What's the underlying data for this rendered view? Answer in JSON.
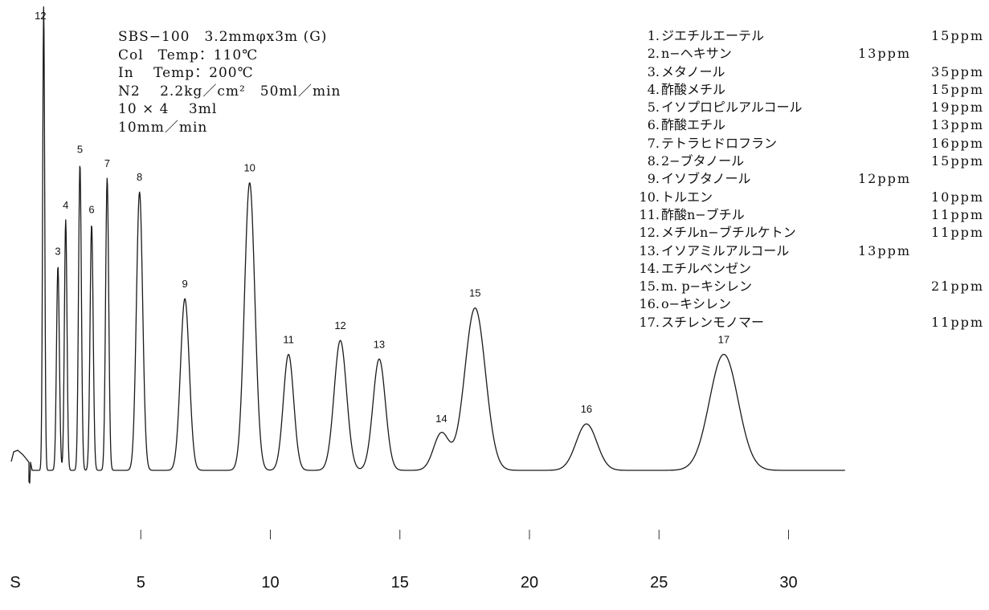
{
  "conditions": [
    "SBS−100　3.2mmφx3m (G)",
    "Col　Temp：110℃",
    "In　 Temp：200℃",
    "N2　 2.2kg／cm²　50ml／min",
    "10 × 4　 3ml",
    "10mm／min"
  ],
  "legend": [
    {
      "num": "1.",
      "name": "ジエチルエーテル",
      "conc": "15ppm"
    },
    {
      "num": "2.",
      "name": "n−ヘキサン",
      "conc": "13ppm",
      "alt": true
    },
    {
      "num": "3.",
      "name": "メタノール",
      "conc": "35ppm"
    },
    {
      "num": "4.",
      "name": "酢酸メチル",
      "conc": "15ppm"
    },
    {
      "num": "5.",
      "name": "イソプロピルアルコール",
      "conc": "19ppm"
    },
    {
      "num": "6.",
      "name": "酢酸エチル",
      "conc": "13ppm"
    },
    {
      "num": "7.",
      "name": "テトラヒドロフラン",
      "conc": "16ppm"
    },
    {
      "num": "8.",
      "name": "2−ブタノール",
      "conc": "15ppm"
    },
    {
      "num": "9.",
      "name": "イソブタノール",
      "conc": "12ppm",
      "alt": true
    },
    {
      "num": "10.",
      "name": "トルエン",
      "conc": "10ppm"
    },
    {
      "num": "11.",
      "name": "酢酸n−ブチル",
      "conc": "11ppm"
    },
    {
      "num": "12.",
      "name": "メチルn−ブチルケトン",
      "conc": "11ppm"
    },
    {
      "num": "13.",
      "name": "イソアミルアルコール",
      "conc": "13ppm",
      "alt": true
    },
    {
      "num": "14.",
      "name": "エチルベンゼン",
      "conc": ""
    },
    {
      "num": "15.",
      "name": "m. p−キシレン",
      "conc": "21ppm"
    },
    {
      "num": "16.",
      "name": "o−キシレン",
      "conc": ""
    },
    {
      "num": "17.",
      "name": "スチレンモノマー",
      "conc": "11ppm"
    }
  ],
  "chart_data": {
    "type": "line",
    "x_ticks": [
      "S",
      "5",
      "10",
      "15",
      "20",
      "25",
      "30"
    ],
    "x_tick_values": [
      0,
      5,
      10,
      15,
      20,
      25,
      30
    ],
    "xlim": [
      0,
      32.5
    ],
    "ylim": [
      0,
      100
    ],
    "grid": false,
    "peak_labels": [
      "12",
      "3",
      "4",
      "5",
      "6",
      "7",
      "8",
      "9",
      "10",
      "11",
      "12",
      "13",
      "14",
      "15",
      "16",
      "17"
    ],
    "peaks": [
      {
        "label": "12",
        "x": 1.25,
        "height": 100
      },
      {
        "label": "3",
        "x": 1.8,
        "height": 44
      },
      {
        "label": "4",
        "x": 2.1,
        "height": 54
      },
      {
        "label": "5",
        "x": 2.65,
        "height": 66
      },
      {
        "label": "6",
        "x": 3.1,
        "height": 53
      },
      {
        "label": "7",
        "x": 3.7,
        "height": 63
      },
      {
        "label": "8",
        "x": 4.95,
        "height": 60
      },
      {
        "label": "9",
        "x": 6.7,
        "height": 37
      },
      {
        "label": "10",
        "x": 9.2,
        "height": 62
      },
      {
        "label": "11",
        "x": 10.7,
        "height": 25
      },
      {
        "label": "12",
        "x": 12.7,
        "height": 28
      },
      {
        "label": "13",
        "x": 14.2,
        "height": 24
      },
      {
        "label": "14",
        "x": 16.6,
        "height": 8
      },
      {
        "label": "15",
        "x": 17.9,
        "height": 35
      },
      {
        "label": "16",
        "x": 22.2,
        "height": 10
      },
      {
        "label": "17",
        "x": 27.5,
        "height": 25
      }
    ]
  }
}
